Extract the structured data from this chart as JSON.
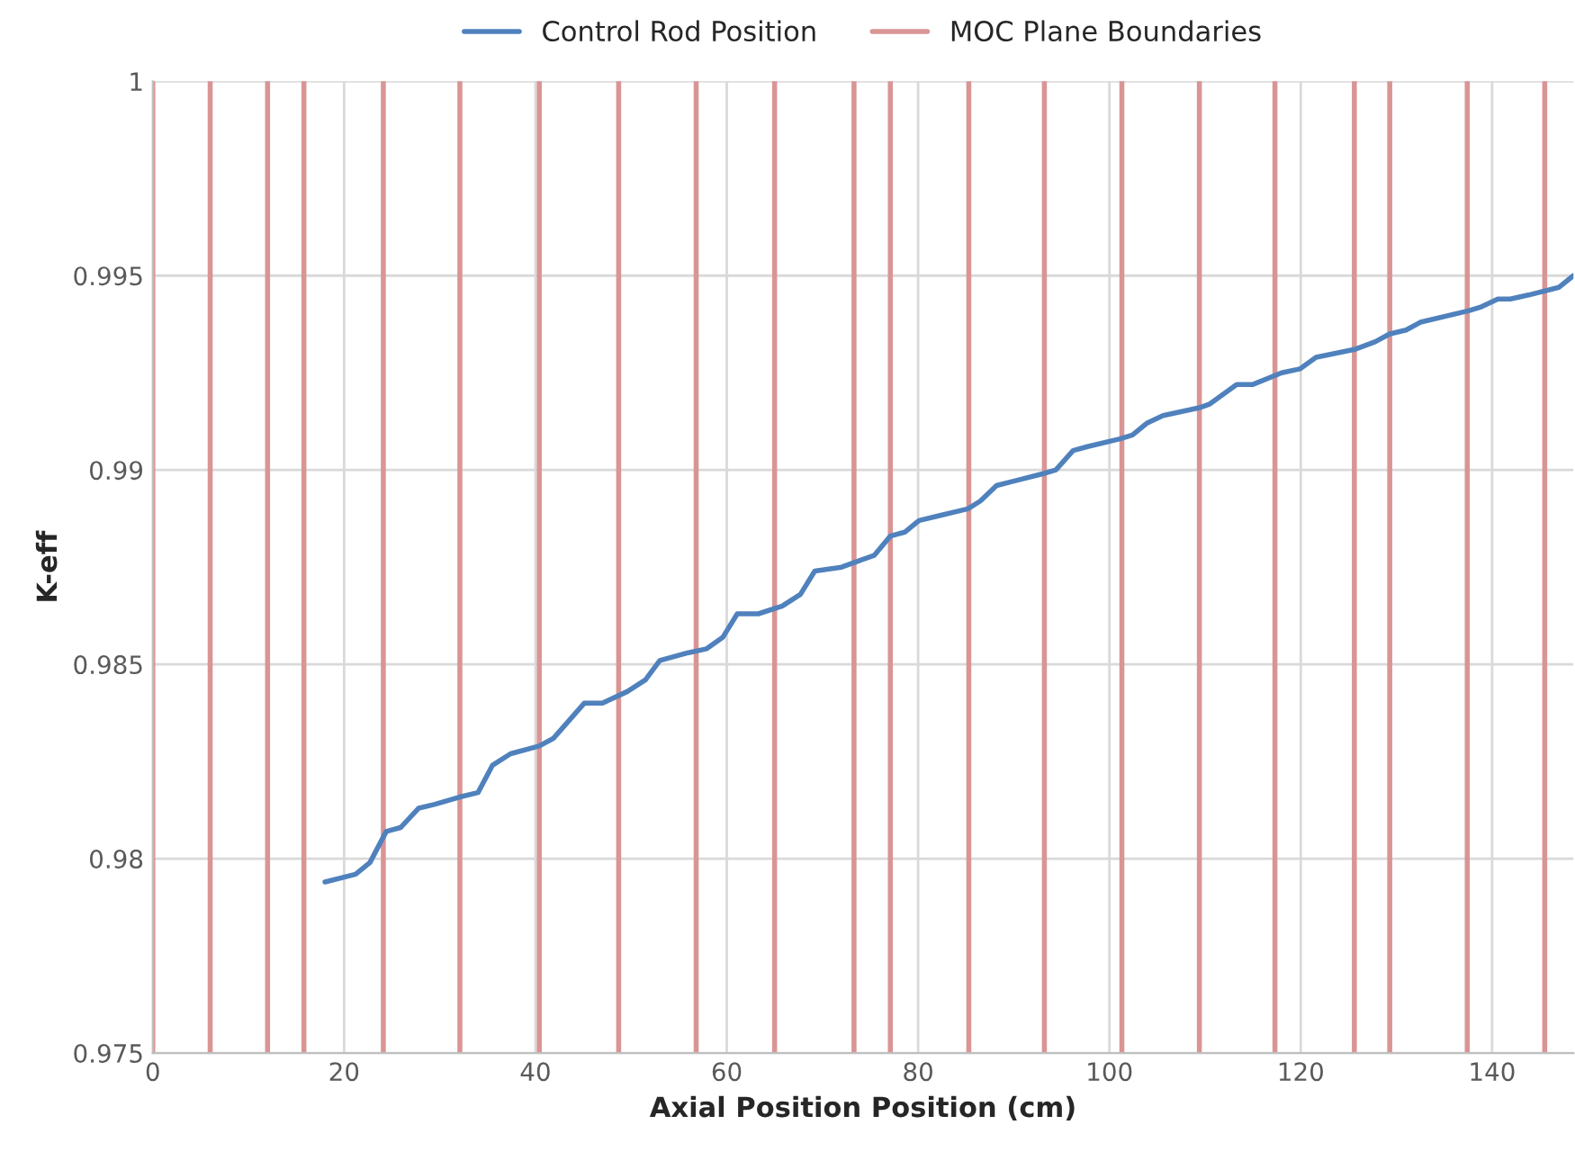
{
  "chart_data": {
    "type": "line",
    "xlabel": "Axial Position Position (cm)",
    "ylabel": "K-eff",
    "series": [
      {
        "name": "Control Rod Position",
        "color": "#4f81bd",
        "x": [
          18.0,
          21.2,
          22.7,
          24.4,
          25.9,
          27.8,
          29.5,
          32.3,
          34.0,
          35.5,
          37.4,
          40.4,
          41.9,
          45.1,
          47.0,
          49.6,
          51.5,
          53.0,
          56.0,
          57.9,
          59.6,
          61.1,
          63.3,
          65.8,
          67.7,
          69.2,
          72.0,
          74.2,
          75.4,
          77.1,
          78.6,
          80.1,
          81.8,
          85.2,
          86.5,
          88.2,
          89.8,
          93.0,
          94.4,
          96.2,
          97.7,
          101.1,
          102.4,
          103.9,
          105.6,
          109.4,
          110.5,
          113.3,
          115.0,
          118.0,
          119.9,
          121.6,
          125.6,
          127.8,
          129.3,
          131.0,
          132.5,
          137.6,
          138.9,
          140.6,
          141.9,
          143.8,
          147.0,
          148.5
        ],
        "values": [
          0.9794,
          0.9796,
          0.9799,
          0.9807,
          0.9808,
          0.9813,
          0.9814,
          0.9816,
          0.9817,
          0.9824,
          0.9827,
          0.9829,
          0.9831,
          0.984,
          0.984,
          0.9843,
          0.9846,
          0.9851,
          0.9853,
          0.9854,
          0.9857,
          0.9863,
          0.9863,
          0.9865,
          0.9868,
          0.9874,
          0.9875,
          0.9877,
          0.9878,
          0.9883,
          0.9884,
          0.9887,
          0.9888,
          0.989,
          0.9892,
          0.9896,
          0.9897,
          0.9899,
          0.99,
          0.9905,
          0.9906,
          0.9908,
          0.9909,
          0.9912,
          0.9914,
          0.9916,
          0.9917,
          0.9922,
          0.9922,
          0.9925,
          0.9926,
          0.9929,
          0.9931,
          0.9933,
          0.9935,
          0.9936,
          0.9938,
          0.9941,
          0.9942,
          0.9944,
          0.9944,
          0.9945,
          0.9947,
          0.995
        ]
      }
    ],
    "ref_lines": [
      {
        "axis": "x",
        "value": 0,
        "label": "MOC Plane Boundaries",
        "color": "#d99594"
      },
      {
        "axis": "x",
        "value": 6.0,
        "color": "#d99594"
      },
      {
        "axis": "x",
        "value": 12.0,
        "color": "#d99594"
      },
      {
        "axis": "x",
        "value": 15.8,
        "color": "#d99594"
      },
      {
        "axis": "x",
        "value": 24.1,
        "color": "#d99594"
      },
      {
        "axis": "x",
        "value": 32.1,
        "color": "#d99594"
      },
      {
        "axis": "x",
        "value": 40.4,
        "color": "#d99594"
      },
      {
        "axis": "x",
        "value": 48.7,
        "color": "#d99594"
      },
      {
        "axis": "x",
        "value": 56.8,
        "color": "#d99594"
      },
      {
        "axis": "x",
        "value": 65.0,
        "color": "#d99594"
      },
      {
        "axis": "x",
        "value": 73.3,
        "color": "#d99594"
      },
      {
        "axis": "x",
        "value": 77.1,
        "color": "#d99594"
      },
      {
        "axis": "x",
        "value": 85.3,
        "color": "#d99594"
      },
      {
        "axis": "x",
        "value": 93.2,
        "color": "#d99594"
      },
      {
        "axis": "x",
        "value": 101.3,
        "color": "#d99594"
      },
      {
        "axis": "x",
        "value": 109.4,
        "color": "#d99594"
      },
      {
        "axis": "x",
        "value": 117.3,
        "color": "#d99594"
      },
      {
        "axis": "x",
        "value": 125.6,
        "color": "#d99594"
      },
      {
        "axis": "x",
        "value": 129.3,
        "color": "#d99594"
      },
      {
        "axis": "x",
        "value": 137.4,
        "color": "#d99594"
      },
      {
        "axis": "x",
        "value": 145.5,
        "color": "#d99594"
      }
    ],
    "xlim": [
      0,
      148.5
    ],
    "xticks": [
      0,
      20,
      40,
      60,
      80,
      100,
      120,
      140
    ],
    "ylim": [
      0.975,
      1
    ],
    "yticks": [
      0.975,
      0.98,
      0.985,
      0.99,
      0.995,
      1
    ],
    "grid": true,
    "legend": "top",
    "marker": "none",
    "line_style": "solid"
  }
}
